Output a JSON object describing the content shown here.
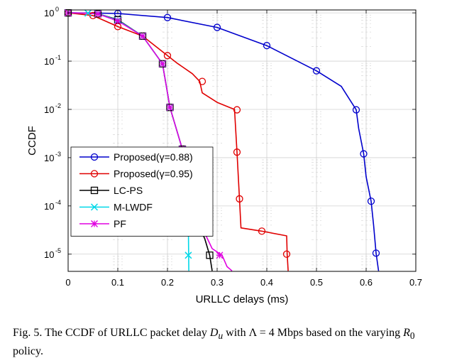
{
  "caption": {
    "label": "Fig. 5.",
    "text_before": "The CCDF of URLLC packet delay",
    "var_delay": "D",
    "var_delay_sub": "u",
    "text_with": "with",
    "var_lambda": "Λ",
    "eq_rate": "= 4 Mbps based on the varying",
    "var_r": "R",
    "var_r_sub": "0",
    "text_after": "policy."
  },
  "chart_data": {
    "type": "line",
    "xlabel": "URLLC delays (ms)",
    "ylabel": "CCDF",
    "xlim": [
      0,
      0.7
    ],
    "ylim": [
      4.4e-06,
      1.15
    ],
    "yscale": "log",
    "grid": true,
    "legend_position": "bottom-left",
    "x_ticks": [
      "0",
      "0.1",
      "0.2",
      "0.3",
      "0.4",
      "0.5",
      "0.6",
      "0.7"
    ],
    "y_ticks": [
      {
        "base": "10",
        "exp": "0"
      },
      {
        "base": "10",
        "exp": "-1"
      },
      {
        "base": "10",
        "exp": "-2"
      },
      {
        "base": "10",
        "exp": "-3"
      },
      {
        "base": "10",
        "exp": "-4"
      },
      {
        "base": "10",
        "exp": "-5"
      }
    ],
    "series": [
      {
        "name": "Proposed(γ=0.88)",
        "color": "#0000cc",
        "marker": "circle",
        "points": [
          [
            0,
            1
          ],
          [
            0.05,
            0.995
          ],
          [
            0.1,
            0.97
          ],
          [
            0.2,
            0.8
          ],
          [
            0.3,
            0.5
          ],
          [
            0.4,
            0.21
          ],
          [
            0.5,
            0.063
          ],
          [
            0.55,
            0.03
          ],
          [
            0.58,
            0.0098
          ],
          [
            0.585,
            0.004
          ],
          [
            0.595,
            0.0012
          ],
          [
            0.6,
            0.0004
          ],
          [
            0.61,
            0.000125
          ],
          [
            0.615,
            4e-05
          ],
          [
            0.62,
            1.05e-05
          ],
          [
            0.625,
            4.5e-06
          ]
        ],
        "markers": [
          [
            0,
            1
          ],
          [
            0.1,
            0.97
          ],
          [
            0.2,
            0.8
          ],
          [
            0.3,
            0.5
          ],
          [
            0.4,
            0.21
          ],
          [
            0.5,
            0.063
          ],
          [
            0.58,
            0.0098
          ],
          [
            0.595,
            0.0012
          ],
          [
            0.61,
            0.000125
          ],
          [
            0.62,
            1.05e-05
          ]
        ]
      },
      {
        "name": "Proposed(γ=0.95)",
        "color": "#e00000",
        "marker": "circle",
        "points": [
          [
            0,
            1
          ],
          [
            0.05,
            0.88
          ],
          [
            0.1,
            0.52
          ],
          [
            0.15,
            0.33
          ],
          [
            0.2,
            0.13
          ],
          [
            0.22,
            0.09
          ],
          [
            0.25,
            0.055
          ],
          [
            0.265,
            0.038
          ],
          [
            0.27,
            0.022
          ],
          [
            0.3,
            0.014
          ],
          [
            0.325,
            0.011
          ],
          [
            0.335,
            0.01
          ],
          [
            0.34,
            0.0013
          ],
          [
            0.345,
            0.00014
          ],
          [
            0.348,
            3.5e-05
          ],
          [
            0.39,
            3e-05
          ],
          [
            0.44,
            2.4e-05
          ],
          [
            0.441,
            1e-05
          ],
          [
            0.443,
            4.5e-06
          ]
        ],
        "markers": [
          [
            0,
            1
          ],
          [
            0.05,
            0.88
          ],
          [
            0.1,
            0.52
          ],
          [
            0.2,
            0.13
          ],
          [
            0.27,
            0.038
          ],
          [
            0.34,
            0.0098
          ],
          [
            0.34,
            0.0013
          ],
          [
            0.345,
            0.00014
          ],
          [
            0.39,
            3e-05
          ],
          [
            0.44,
            1e-05
          ]
        ]
      },
      {
        "name": "LC-PS",
        "color": "#000000",
        "marker": "square",
        "points": [
          [
            0,
            1
          ],
          [
            0.03,
            0.99
          ],
          [
            0.06,
            0.96
          ],
          [
            0.1,
            0.72
          ],
          [
            0.15,
            0.33
          ],
          [
            0.19,
            0.088
          ],
          [
            0.205,
            0.011
          ],
          [
            0.23,
            0.0015
          ],
          [
            0.245,
            0.00014
          ],
          [
            0.26,
            4.5e-05
          ],
          [
            0.275,
            2.1e-05
          ],
          [
            0.285,
            9.5e-06
          ],
          [
            0.29,
            4.5e-06
          ]
        ],
        "markers": [
          [
            0,
            1
          ],
          [
            0.06,
            0.96
          ],
          [
            0.1,
            0.72
          ],
          [
            0.15,
            0.33
          ],
          [
            0.19,
            0.088
          ],
          [
            0.205,
            0.011
          ],
          [
            0.23,
            0.0015
          ],
          [
            0.245,
            0.00014
          ],
          [
            0.265,
            4.5e-05
          ],
          [
            0.285,
            9.5e-06
          ]
        ]
      },
      {
        "name": "M-LWDF",
        "color": "#00d8e8",
        "marker": "x",
        "points": [
          [
            0,
            1
          ],
          [
            0.03,
            0.99
          ],
          [
            0.06,
            0.96
          ],
          [
            0.1,
            0.7
          ],
          [
            0.15,
            0.33
          ],
          [
            0.19,
            0.088
          ],
          [
            0.205,
            0.011
          ],
          [
            0.23,
            0.0015
          ],
          [
            0.24,
            0.00014
          ],
          [
            0.242,
            4.5e-05
          ],
          [
            0.243,
            4.5e-06
          ]
        ],
        "markers": [
          [
            0,
            1
          ],
          [
            0.04,
            0.99
          ],
          [
            0.06,
            0.96
          ],
          [
            0.1,
            0.7
          ],
          [
            0.15,
            0.33
          ],
          [
            0.19,
            0.088
          ],
          [
            0.205,
            0.011
          ],
          [
            0.23,
            0.0015
          ],
          [
            0.24,
            0.00014
          ],
          [
            0.242,
            4.5e-05
          ],
          [
            0.242,
            9.5e-06
          ]
        ]
      },
      {
        "name": "PF",
        "color": "#e000e0",
        "marker": "star",
        "points": [
          [
            0,
            1
          ],
          [
            0.03,
            0.99
          ],
          [
            0.06,
            0.95
          ],
          [
            0.1,
            0.68
          ],
          [
            0.15,
            0.33
          ],
          [
            0.19,
            0.088
          ],
          [
            0.205,
            0.011
          ],
          [
            0.23,
            0.0015
          ],
          [
            0.245,
            0.00014
          ],
          [
            0.265,
            4.5e-05
          ],
          [
            0.29,
            1.3e-05
          ],
          [
            0.31,
            9.5e-06
          ],
          [
            0.32,
            5.5e-06
          ],
          [
            0.33,
            4.5e-06
          ]
        ],
        "markers": [
          [
            0,
            1
          ],
          [
            0.06,
            0.95
          ],
          [
            0.1,
            0.68
          ],
          [
            0.15,
            0.33
          ],
          [
            0.19,
            0.088
          ],
          [
            0.205,
            0.011
          ],
          [
            0.23,
            0.0015
          ],
          [
            0.245,
            0.00014
          ],
          [
            0.265,
            4.5e-05
          ],
          [
            0.305,
            9.5e-06
          ]
        ]
      }
    ]
  }
}
